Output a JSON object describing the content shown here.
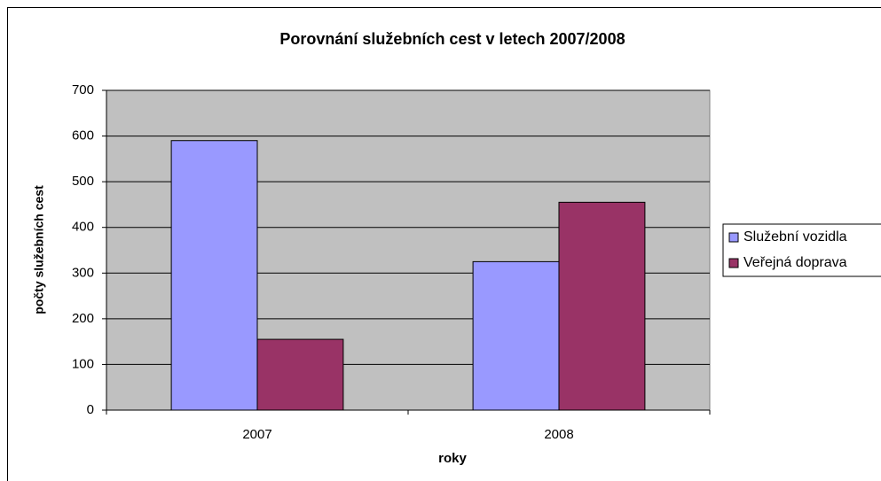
{
  "chart_data": {
    "type": "bar",
    "title": "Porovnání služebních cest  v letech 2007/2008",
    "x_label": "roky",
    "y_label": "počty služebních cest",
    "categories": [
      "2007",
      "2008"
    ],
    "series": [
      {
        "name": "Služební vozidla",
        "color": "#9999ff",
        "values": [
          590,
          325
        ]
      },
      {
        "name": "Veřejná doprava",
        "color": "#993366",
        "values": [
          155,
          455
        ]
      }
    ],
    "ylim": [
      0,
      700
    ],
    "yticks": [
      0,
      100,
      200,
      300,
      400,
      500,
      600,
      700
    ],
    "grid": true,
    "legend": "right"
  }
}
